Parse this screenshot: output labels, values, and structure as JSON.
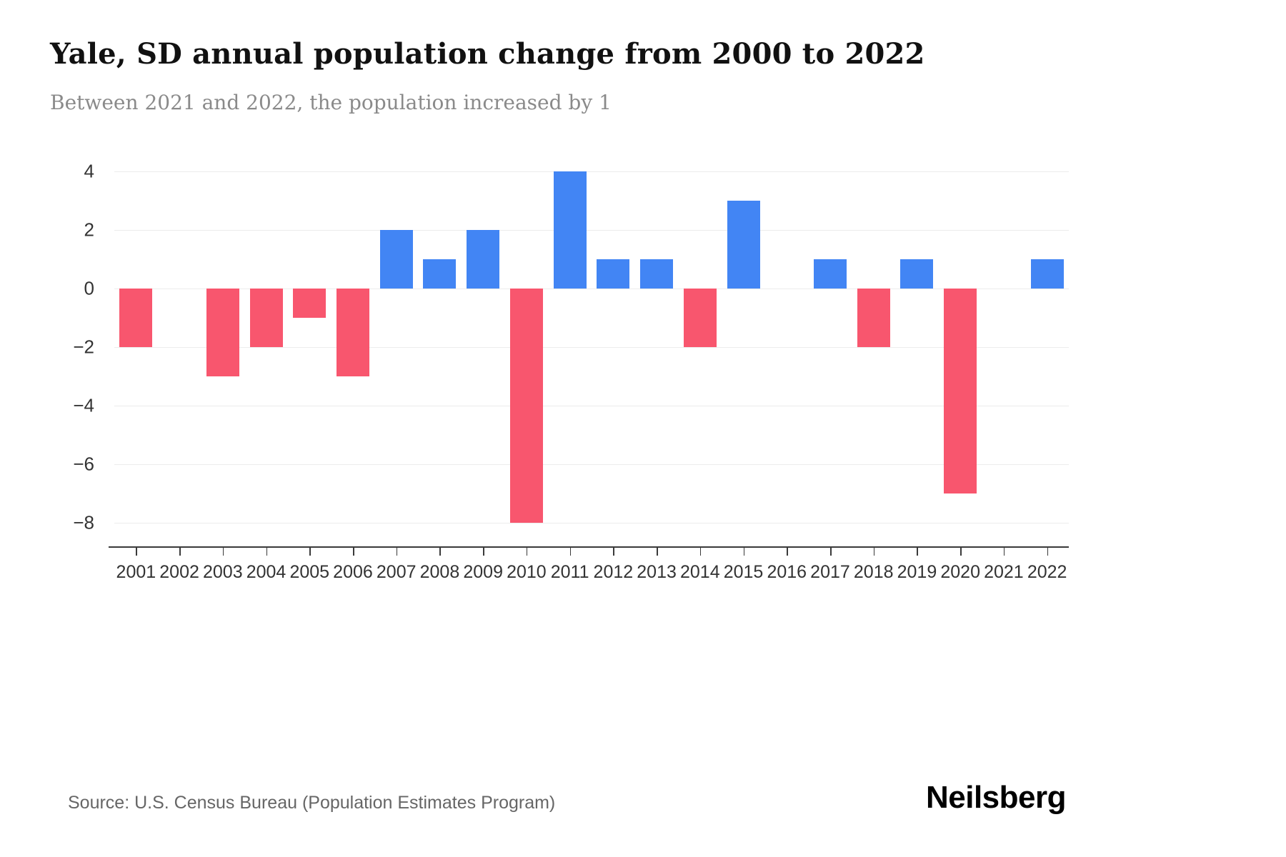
{
  "page": {
    "title": "Yale, SD annual population change from 2000 to 2022",
    "subtitle": "Between 2021 and 2022, the population increased by 1",
    "source": "Source: U.S. Census Bureau (Population Estimates Program)",
    "logo": "Neilsberg"
  },
  "colors": {
    "positive_bar": "#4285F4",
    "negative_bar": "#F8566E",
    "gridline": "#ECECEC",
    "axis": "#3A3A3A",
    "tick_label": "#333333",
    "subtitle_text": "#8A8A8A",
    "source_text": "#666666"
  },
  "chart_data": {
    "type": "bar",
    "title": "Yale, SD annual population change from 2000 to 2022",
    "subtitle": "Between 2021 and 2022, the population increased by 1",
    "xlabel": "",
    "ylabel": "",
    "categories": [
      "2001",
      "2002",
      "2003",
      "2004",
      "2005",
      "2006",
      "2007",
      "2008",
      "2009",
      "2010",
      "2011",
      "2012",
      "2013",
      "2014",
      "2015",
      "2016",
      "2017",
      "2018",
      "2019",
      "2020",
      "2021",
      "2022"
    ],
    "values": [
      -2,
      0,
      -3,
      -2,
      -1,
      -3,
      2,
      1,
      2,
      -8,
      4,
      1,
      1,
      -2,
      3,
      0,
      1,
      -2,
      1,
      -7,
      0,
      1
    ],
    "ylim": [
      -8,
      4
    ],
    "yticks": [
      4,
      2,
      0,
      -2,
      -4,
      -6,
      -8
    ],
    "grid": true,
    "legend": false
  }
}
